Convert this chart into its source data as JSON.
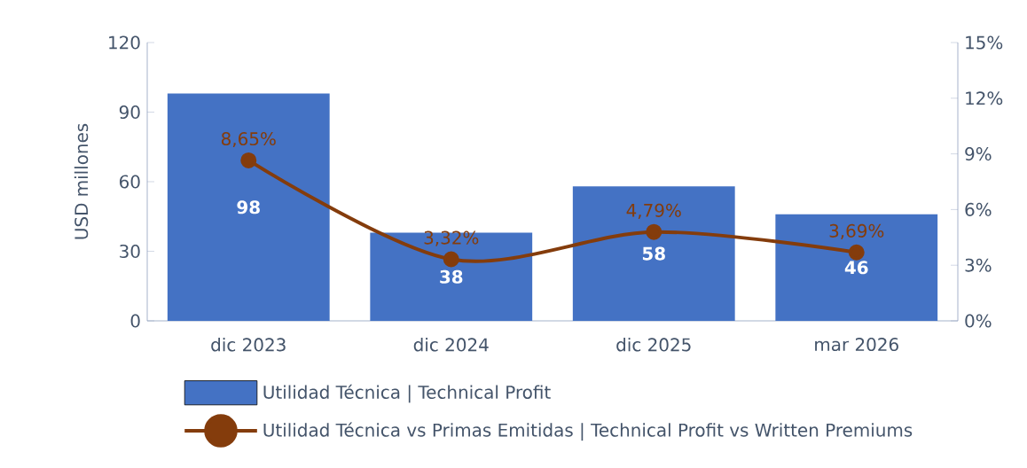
{
  "chart_data": {
    "type": "bar",
    "ylabel": "USD millones",
    "categories": [
      "dic 2023",
      "dic 2024",
      "dic 2025",
      "mar 2026"
    ],
    "series": [
      {
        "name": "Utilidad Técnica | Technical Profit",
        "color": "#4472c4",
        "values": [
          98,
          38,
          58,
          46
        ],
        "value_labels": [
          "98",
          "38",
          "58",
          "46"
        ]
      },
      {
        "name": "Utilidad Técnica vs Primas Emitidas | Technical Profit vs Written Premiums",
        "type": "line",
        "axis": "y2",
        "color": "#843c0c",
        "values": [
          8.65,
          3.32,
          4.79,
          3.69
        ],
        "value_labels": [
          "8,65%",
          "3,32%",
          "4,79%",
          "3,69%"
        ]
      }
    ],
    "ylim": [
      0,
      120
    ],
    "yticks": [
      0,
      30,
      60,
      90,
      120
    ],
    "y2lim": [
      0,
      15
    ],
    "y2ticks": [
      {
        "value": 0,
        "label": "0%"
      },
      {
        "value": 3,
        "label": "3%"
      },
      {
        "value": 6,
        "label": "6%"
      },
      {
        "value": 9,
        "label": "9%"
      },
      {
        "value": 12,
        "label": "12%"
      },
      {
        "value": 15,
        "label": "15%"
      }
    ],
    "grid": false,
    "legend": "bottom",
    "marker": "circle"
  }
}
